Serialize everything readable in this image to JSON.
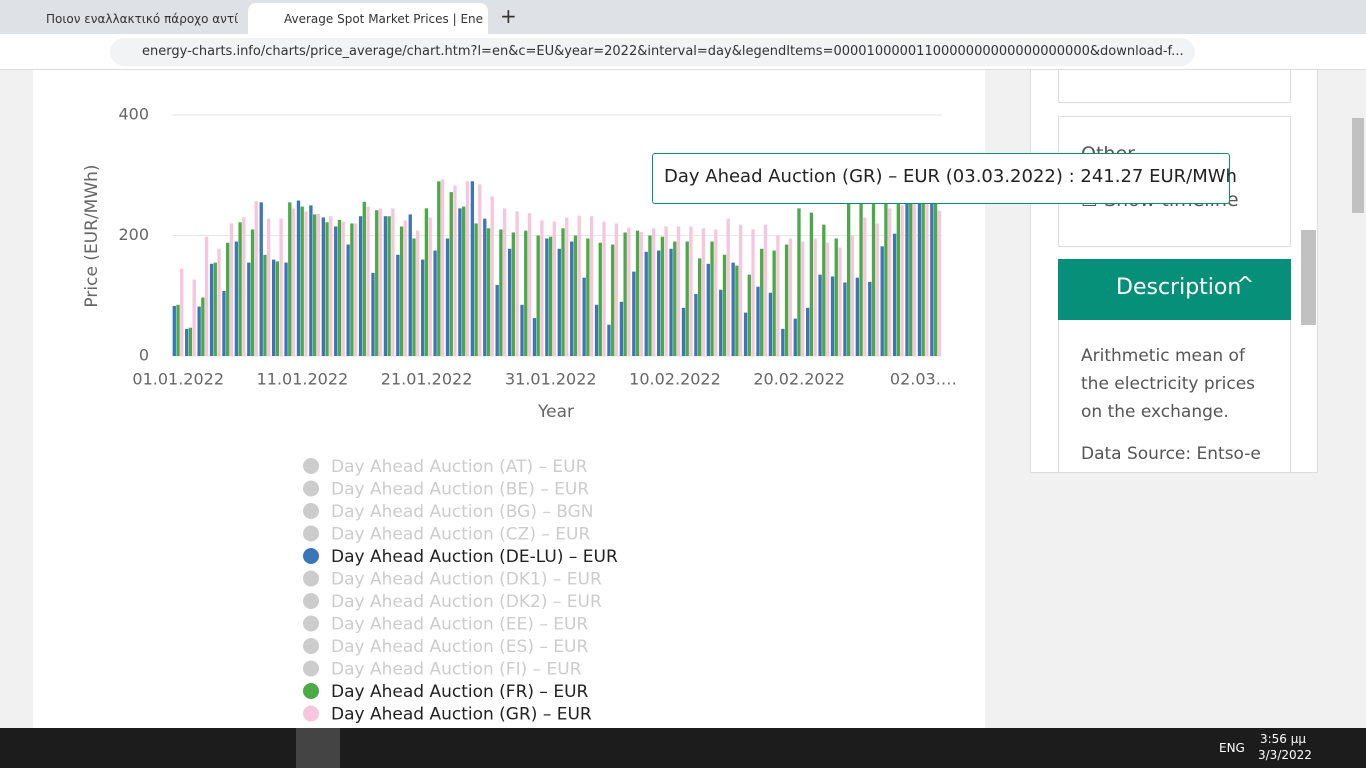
{
  "browser": {
    "tabs": [
      "Ποιον εναλλακτικό πάροχο αντί",
      "Average Spot Market Prices | Ene"
    ],
    "url": "energy-charts.info/charts/price_average/chart.htm?l=en&c=EU&year=2022&interval=day&legendItems=0000100000110000000000000000000&download-f..."
  },
  "chart_data": {
    "type": "bar",
    "xlabel": "Year",
    "ylabel": "Price (EUR/MWh)",
    "ylim": [
      0,
      400
    ],
    "yticks": [
      0,
      200,
      400
    ],
    "grid": true,
    "categories": [
      "01.01.2022",
      null,
      null,
      null,
      null,
      null,
      null,
      null,
      null,
      null,
      "11.01.2022",
      null,
      null,
      null,
      null,
      null,
      null,
      null,
      null,
      null,
      "21.01.2022",
      null,
      null,
      null,
      null,
      null,
      null,
      null,
      null,
      null,
      "31.01.2022",
      null,
      null,
      null,
      null,
      null,
      null,
      null,
      null,
      null,
      "10.02.2022",
      null,
      null,
      null,
      null,
      null,
      null,
      null,
      null,
      null,
      "20.02.2022",
      null,
      null,
      null,
      null,
      null,
      null,
      null,
      null,
      null,
      "02.03.…",
      null
    ],
    "series": [
      {
        "name": "Day Ahead Auction (AT) – EUR",
        "color": "#cccccc",
        "visible": false
      },
      {
        "name": "Day Ahead Auction (BE) – EUR",
        "color": "#cccccc",
        "visible": false
      },
      {
        "name": "Day Ahead Auction (BG) – BGN",
        "color": "#cccccc",
        "visible": false
      },
      {
        "name": "Day Ahead Auction (CZ) – EUR",
        "color": "#cccccc",
        "visible": false
      },
      {
        "name": "Day Ahead Auction (DE-LU) – EUR",
        "color": "#3a76b8",
        "visible": true,
        "values": [
          83,
          45,
          82,
          153,
          108,
          190,
          155,
          255,
          160,
          155,
          258,
          250,
          230,
          215,
          185,
          232,
          138,
          232,
          168,
          235,
          160,
          175,
          195,
          245,
          290,
          228,
          118,
          178,
          85,
          63,
          195,
          178,
          190,
          130,
          85,
          52,
          90,
          140,
          173,
          175,
          178,
          80,
          103,
          153,
          110,
          155,
          72,
          115,
          105,
          45,
          62,
          80,
          135,
          132,
          122,
          130,
          123,
          182,
          203,
          255,
          260,
          262
        ]
      },
      {
        "name": "Day Ahead Auction (DK1) – EUR",
        "color": "#cccccc",
        "visible": false
      },
      {
        "name": "Day Ahead Auction (DK2) – EUR",
        "color": "#cccccc",
        "visible": false
      },
      {
        "name": "Day Ahead Auction (EE) – EUR",
        "color": "#cccccc",
        "visible": false
      },
      {
        "name": "Day Ahead Auction (ES) – EUR",
        "color": "#cccccc",
        "visible": false
      },
      {
        "name": "Day Ahead Auction (FI) – EUR",
        "color": "#cccccc",
        "visible": false
      },
      {
        "name": "Day Ahead Auction (FR) – EUR",
        "color": "#4aaa48",
        "visible": true,
        "values": [
          85,
          47,
          97,
          155,
          188,
          222,
          210,
          168,
          157,
          255,
          248,
          235,
          222,
          226,
          220,
          256,
          242,
          232,
          215,
          195,
          245,
          290,
          272,
          248,
          220,
          212,
          210,
          205,
          208,
          200,
          198,
          212,
          200,
          195,
          188,
          185,
          205,
          208,
          200,
          198,
          190,
          190,
          162,
          190,
          168,
          150,
          135,
          178,
          175,
          185,
          245,
          238,
          218,
          195,
          258,
          262,
          255,
          260,
          260,
          265,
          262,
          265
        ]
      },
      {
        "name": "Day Ahead Auction (GR) – EUR",
        "color": "#f7c6dd",
        "visible": true,
        "values": [
          145,
          127,
          198,
          178,
          220,
          230,
          257,
          228,
          228,
          245,
          240,
          236,
          232,
          223,
          220,
          248,
          245,
          245,
          225,
          208,
          230,
          293,
          283,
          290,
          285,
          265,
          245,
          240,
          237,
          225,
          223,
          230,
          233,
          232,
          223,
          220,
          213,
          206,
          212,
          215,
          215,
          215,
          212,
          210,
          228,
          218,
          210,
          218,
          200,
          195,
          190,
          195,
          188,
          180,
          200,
          230,
          220,
          245,
          250,
          255,
          260,
          241.27
        ]
      }
    ],
    "tooltip": "Day Ahead Auction (GR) – EUR (03.03.2022) : 241.27 EUR/MWh"
  },
  "sidebar": {
    "other": "Other",
    "timeline": "Show timeline",
    "description_title": "Description",
    "description": "Arithmetic mean of the electricity prices on the exchange.",
    "source": "Data Source: Entso-e"
  },
  "taskbar": {
    "language": "ENG",
    "time": "3:56 μμ",
    "date": "3/3/2022"
  }
}
